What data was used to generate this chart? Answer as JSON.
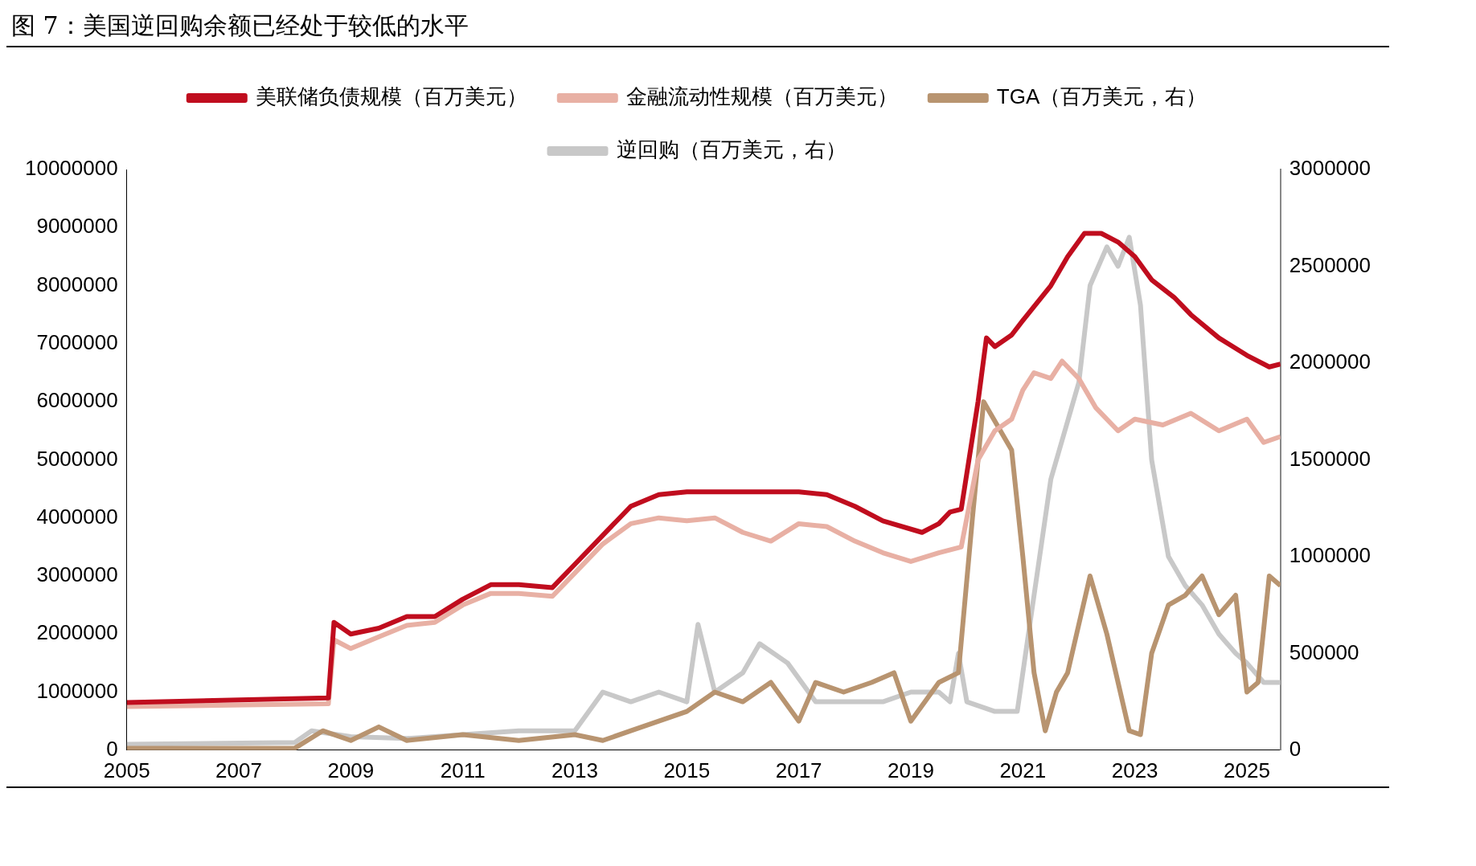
{
  "chart_data": {
    "type": "line",
    "title": "图 7：美国逆回购余额已经处于较低的水平",
    "xlim": [
      2005,
      2025.6
    ],
    "xticks": [
      2005,
      2007,
      2009,
      2011,
      2013,
      2015,
      2017,
      2019,
      2021,
      2023,
      2025
    ],
    "ylim": [
      0,
      10000000
    ],
    "yticks": [
      0,
      1000000,
      2000000,
      3000000,
      4000000,
      5000000,
      6000000,
      7000000,
      8000000,
      9000000,
      10000000
    ],
    "y2lim": [
      0,
      3000000
    ],
    "y2ticks": [
      0,
      500000,
      1000000,
      1500000,
      2000000,
      2500000,
      3000000
    ],
    "grid": false,
    "legend": "top",
    "series": [
      {
        "name": "美联储负债规模（百万美元）",
        "color": "#c00d1e",
        "x": [
          2005,
          2008.6,
          2008.7,
          2009,
          2009.5,
          2010,
          2010.5,
          2011,
          2011.5,
          2012,
          2012.6,
          2013,
          2013.5,
          2014,
          2014.5,
          2015,
          2016,
          2017,
          2017.5,
          2018,
          2018.5,
          2019.2,
          2019.5,
          2019.7,
          2019.9,
          2020.2,
          2020.35,
          2020.5,
          2020.8,
          2021,
          2021.5,
          2021.8,
          2022.1,
          2022.4,
          2022.7,
          2023,
          2023.3,
          2023.7,
          2024,
          2024.5,
          2025,
          2025.4,
          2025.6
        ],
        "values": [
          820000,
          900000,
          2200000,
          2000000,
          2100000,
          2300000,
          2300000,
          2600000,
          2850000,
          2850000,
          2800000,
          3200000,
          3700000,
          4200000,
          4400000,
          4450000,
          4450000,
          4450000,
          4400000,
          4200000,
          3950000,
          3750000,
          3900000,
          4100000,
          4150000,
          6000000,
          7100000,
          6950000,
          7150000,
          7400000,
          8000000,
          8500000,
          8900000,
          8900000,
          8750000,
          8500000,
          8100000,
          7800000,
          7500000,
          7100000,
          6800000,
          6600000,
          6650000
        ]
      },
      {
        "name": "金融流动性规模（百万美元）",
        "color": "#e8b0a4",
        "x": [
          2005,
          2008.6,
          2008.7,
          2009,
          2009.5,
          2010,
          2010.5,
          2011,
          2011.5,
          2012,
          2012.6,
          2013,
          2013.5,
          2014,
          2014.5,
          2015,
          2015.5,
          2016,
          2016.5,
          2017,
          2017.5,
          2018,
          2018.5,
          2019,
          2019.5,
          2019.9,
          2020.2,
          2020.5,
          2020.8,
          2021,
          2021.2,
          2021.5,
          2021.7,
          2022,
          2022.3,
          2022.7,
          2023,
          2023.5,
          2024,
          2024.5,
          2025,
          2025.3,
          2025.6
        ],
        "values": [
          750000,
          800000,
          1900000,
          1750000,
          1950000,
          2150000,
          2200000,
          2500000,
          2700000,
          2700000,
          2650000,
          3050000,
          3550000,
          3900000,
          4000000,
          3950000,
          4000000,
          3750000,
          3600000,
          3900000,
          3850000,
          3600000,
          3400000,
          3250000,
          3400000,
          3500000,
          5000000,
          5500000,
          5700000,
          6200000,
          6500000,
          6400000,
          6700000,
          6400000,
          5900000,
          5500000,
          5700000,
          5600000,
          5800000,
          5500000,
          5700000,
          5300000,
          5400000
        ]
      },
      {
        "name": "TGA（百万美元，右）",
        "color": "#b89470",
        "axis": "y2",
        "x": [
          2005,
          2008,
          2008.5,
          2009,
          2009.5,
          2010,
          2011,
          2012,
          2013,
          2013.5,
          2014,
          2014.5,
          2015,
          2015.5,
          2016,
          2016.5,
          2017,
          2017.3,
          2017.8,
          2018.3,
          2018.7,
          2019,
          2019.5,
          2019.85,
          2020.1,
          2020.3,
          2020.6,
          2020.8,
          2021,
          2021.2,
          2021.4,
          2021.6,
          2021.8,
          2022,
          2022.2,
          2022.5,
          2022.9,
          2023.1,
          2023.3,
          2023.6,
          2023.9,
          2024.2,
          2024.5,
          2024.8,
          2025,
          2025.2,
          2025.4,
          2025.6
        ],
        "values": [
          10000,
          10000,
          100000,
          50000,
          120000,
          50000,
          80000,
          50000,
          80000,
          50000,
          100000,
          150000,
          200000,
          300000,
          250000,
          350000,
          150000,
          350000,
          300000,
          350000,
          400000,
          150000,
          350000,
          400000,
          1200000,
          1800000,
          1650000,
          1550000,
          1000000,
          400000,
          100000,
          300000,
          400000,
          650000,
          900000,
          600000,
          100000,
          80000,
          500000,
          750000,
          800000,
          900000,
          700000,
          800000,
          300000,
          350000,
          900000,
          850000
        ]
      },
      {
        "name": "逆回购（百万美元，右）",
        "color": "#c8c8c8",
        "axis": "y2",
        "x": [
          2005,
          2008,
          2008.3,
          2009,
          2010,
          2011,
          2012,
          2013,
          2013.5,
          2014,
          2014.5,
          2015,
          2015.2,
          2015.5,
          2016,
          2016.3,
          2016.8,
          2017.3,
          2018,
          2018.5,
          2019,
          2019.5,
          2019.7,
          2019.85,
          2020,
          2020.5,
          2020.9,
          2021.1,
          2021.3,
          2021.5,
          2021.8,
          2022,
          2022.2,
          2022.5,
          2022.7,
          2022.9,
          2023.1,
          2023.3,
          2023.6,
          2023.9,
          2024.2,
          2024.5,
          2024.8,
          2025,
          2025.3,
          2025.6
        ],
        "values": [
          30000,
          40000,
          100000,
          70000,
          60000,
          80000,
          100000,
          100000,
          300000,
          250000,
          300000,
          250000,
          650000,
          300000,
          400000,
          550000,
          450000,
          250000,
          250000,
          250000,
          300000,
          300000,
          250000,
          500000,
          250000,
          200000,
          200000,
          600000,
          1000000,
          1400000,
          1700000,
          1900000,
          2400000,
          2600000,
          2500000,
          2650000,
          2300000,
          1500000,
          1000000,
          850000,
          750000,
          600000,
          500000,
          450000,
          350000,
          350000
        ]
      }
    ]
  }
}
